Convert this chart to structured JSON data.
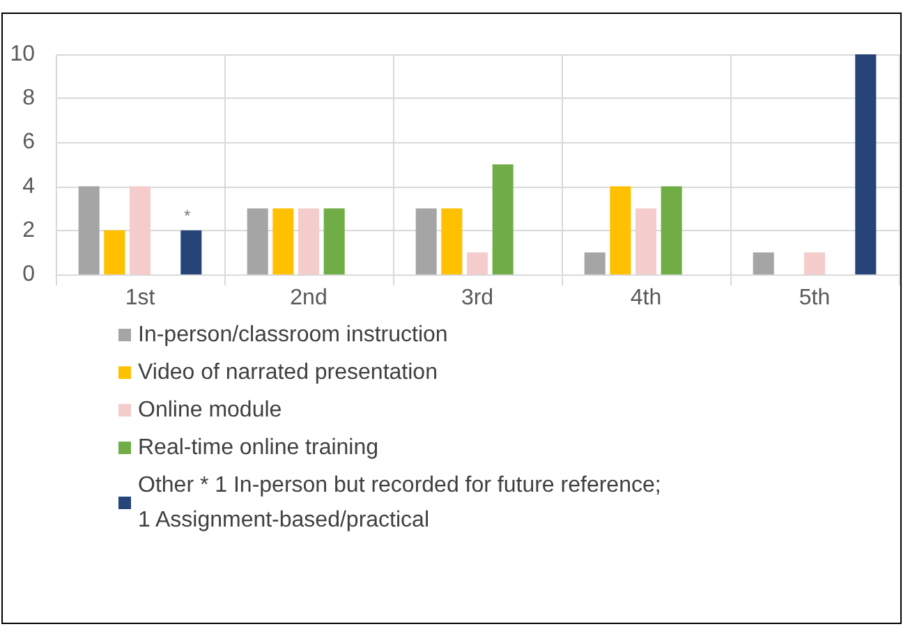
{
  "chart_data": {
    "type": "bar",
    "categories": [
      "1st",
      "2nd",
      "3rd",
      "4th",
      "5th"
    ],
    "series": [
      {
        "name": "In-person/classroom instruction",
        "color": "#a5a5a5",
        "values": [
          4,
          3,
          3,
          1,
          1
        ]
      },
      {
        "name": "Video of narrated presentation",
        "color": "#ffc000",
        "values": [
          2,
          3,
          3,
          4,
          null
        ]
      },
      {
        "name": "Online module",
        "color": "#f4cccc",
        "values": [
          4,
          3,
          1,
          3,
          1
        ]
      },
      {
        "name": "Real-time online training",
        "color": "#70ad47",
        "values": [
          null,
          3,
          5,
          4,
          null
        ]
      },
      {
        "name": "Other * 1 In-person but recorded for future reference;\n1 Assignment-based/practical",
        "color": "#264478",
        "values": [
          2,
          null,
          null,
          null,
          10
        ]
      }
    ],
    "ylim": [
      0,
      10
    ],
    "yticks": [
      0,
      2,
      4,
      6,
      8,
      10
    ],
    "grid": true,
    "legend": "bottom",
    "annotations": [
      "*"
    ]
  }
}
